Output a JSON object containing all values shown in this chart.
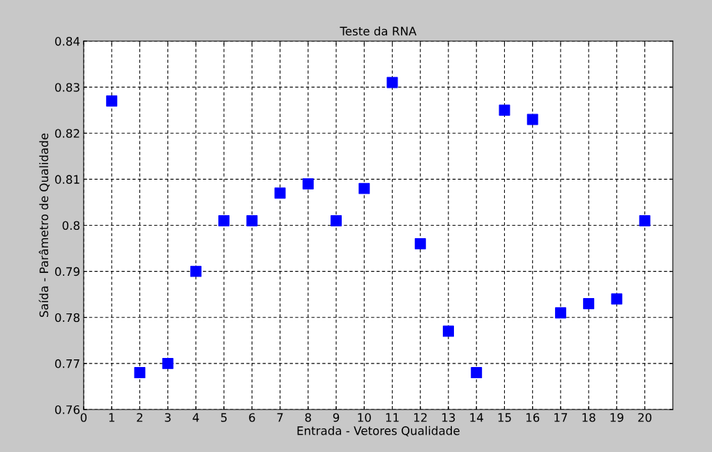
{
  "chart_data": {
    "type": "scatter",
    "title": "Teste da RNA",
    "xlabel": "Entrada - Vetores Qualidade",
    "ylabel": "Saída - Parâmetro de Qualidade",
    "x": [
      1,
      2,
      3,
      4,
      5,
      6,
      7,
      8,
      9,
      10,
      11,
      12,
      13,
      14,
      15,
      16,
      17,
      18,
      19,
      20
    ],
    "series": [
      {
        "color": "#0000ff",
        "values": [
          0.827,
          0.768,
          0.77,
          0.79,
          0.801,
          0.801,
          0.807,
          0.809,
          0.801,
          0.808,
          0.831,
          0.796,
          0.777,
          0.768,
          0.825,
          0.823,
          0.781,
          0.783,
          0.784,
          0.801
        ]
      }
    ],
    "xlim": [
      0,
      21
    ],
    "xticks": [
      0,
      1,
      2,
      3,
      4,
      5,
      6,
      7,
      8,
      9,
      10,
      11,
      12,
      13,
      14,
      15,
      16,
      17,
      18,
      19,
      20
    ],
    "ylim": [
      0.76,
      0.84
    ],
    "yticks": [
      0.76,
      0.77,
      0.78,
      0.79,
      0.8,
      0.81,
      0.82,
      0.83,
      0.84
    ],
    "grid": true,
    "marker": "square",
    "legend": false
  }
}
